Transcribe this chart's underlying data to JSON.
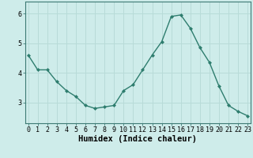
{
  "x": [
    0,
    1,
    2,
    3,
    4,
    5,
    6,
    7,
    8,
    9,
    10,
    11,
    12,
    13,
    14,
    15,
    16,
    17,
    18,
    19,
    20,
    21,
    22,
    23
  ],
  "y": [
    4.6,
    4.1,
    4.1,
    3.7,
    3.4,
    3.2,
    2.9,
    2.8,
    2.85,
    2.9,
    3.4,
    3.6,
    4.1,
    4.6,
    5.05,
    5.9,
    5.95,
    5.5,
    4.85,
    4.35,
    3.55,
    2.9,
    2.7,
    2.55
  ],
  "line_color": "#2e7d6e",
  "marker": "D",
  "marker_size": 2.0,
  "bg_color": "#ceecea",
  "grid_color": "#b8dbd8",
  "xlabel": "Humidex (Indice chaleur)",
  "xlabel_fontsize": 7.5,
  "yticks": [
    3,
    4,
    5,
    6
  ],
  "xticks": [
    0,
    1,
    2,
    3,
    4,
    5,
    6,
    7,
    8,
    9,
    10,
    11,
    12,
    13,
    14,
    15,
    16,
    17,
    18,
    19,
    20,
    21,
    22,
    23
  ],
  "ylim": [
    2.3,
    6.4
  ],
  "xlim": [
    -0.3,
    23.3
  ],
  "tick_fontsize": 6.0,
  "spine_color": "#3d7a74",
  "linewidth": 1.0
}
